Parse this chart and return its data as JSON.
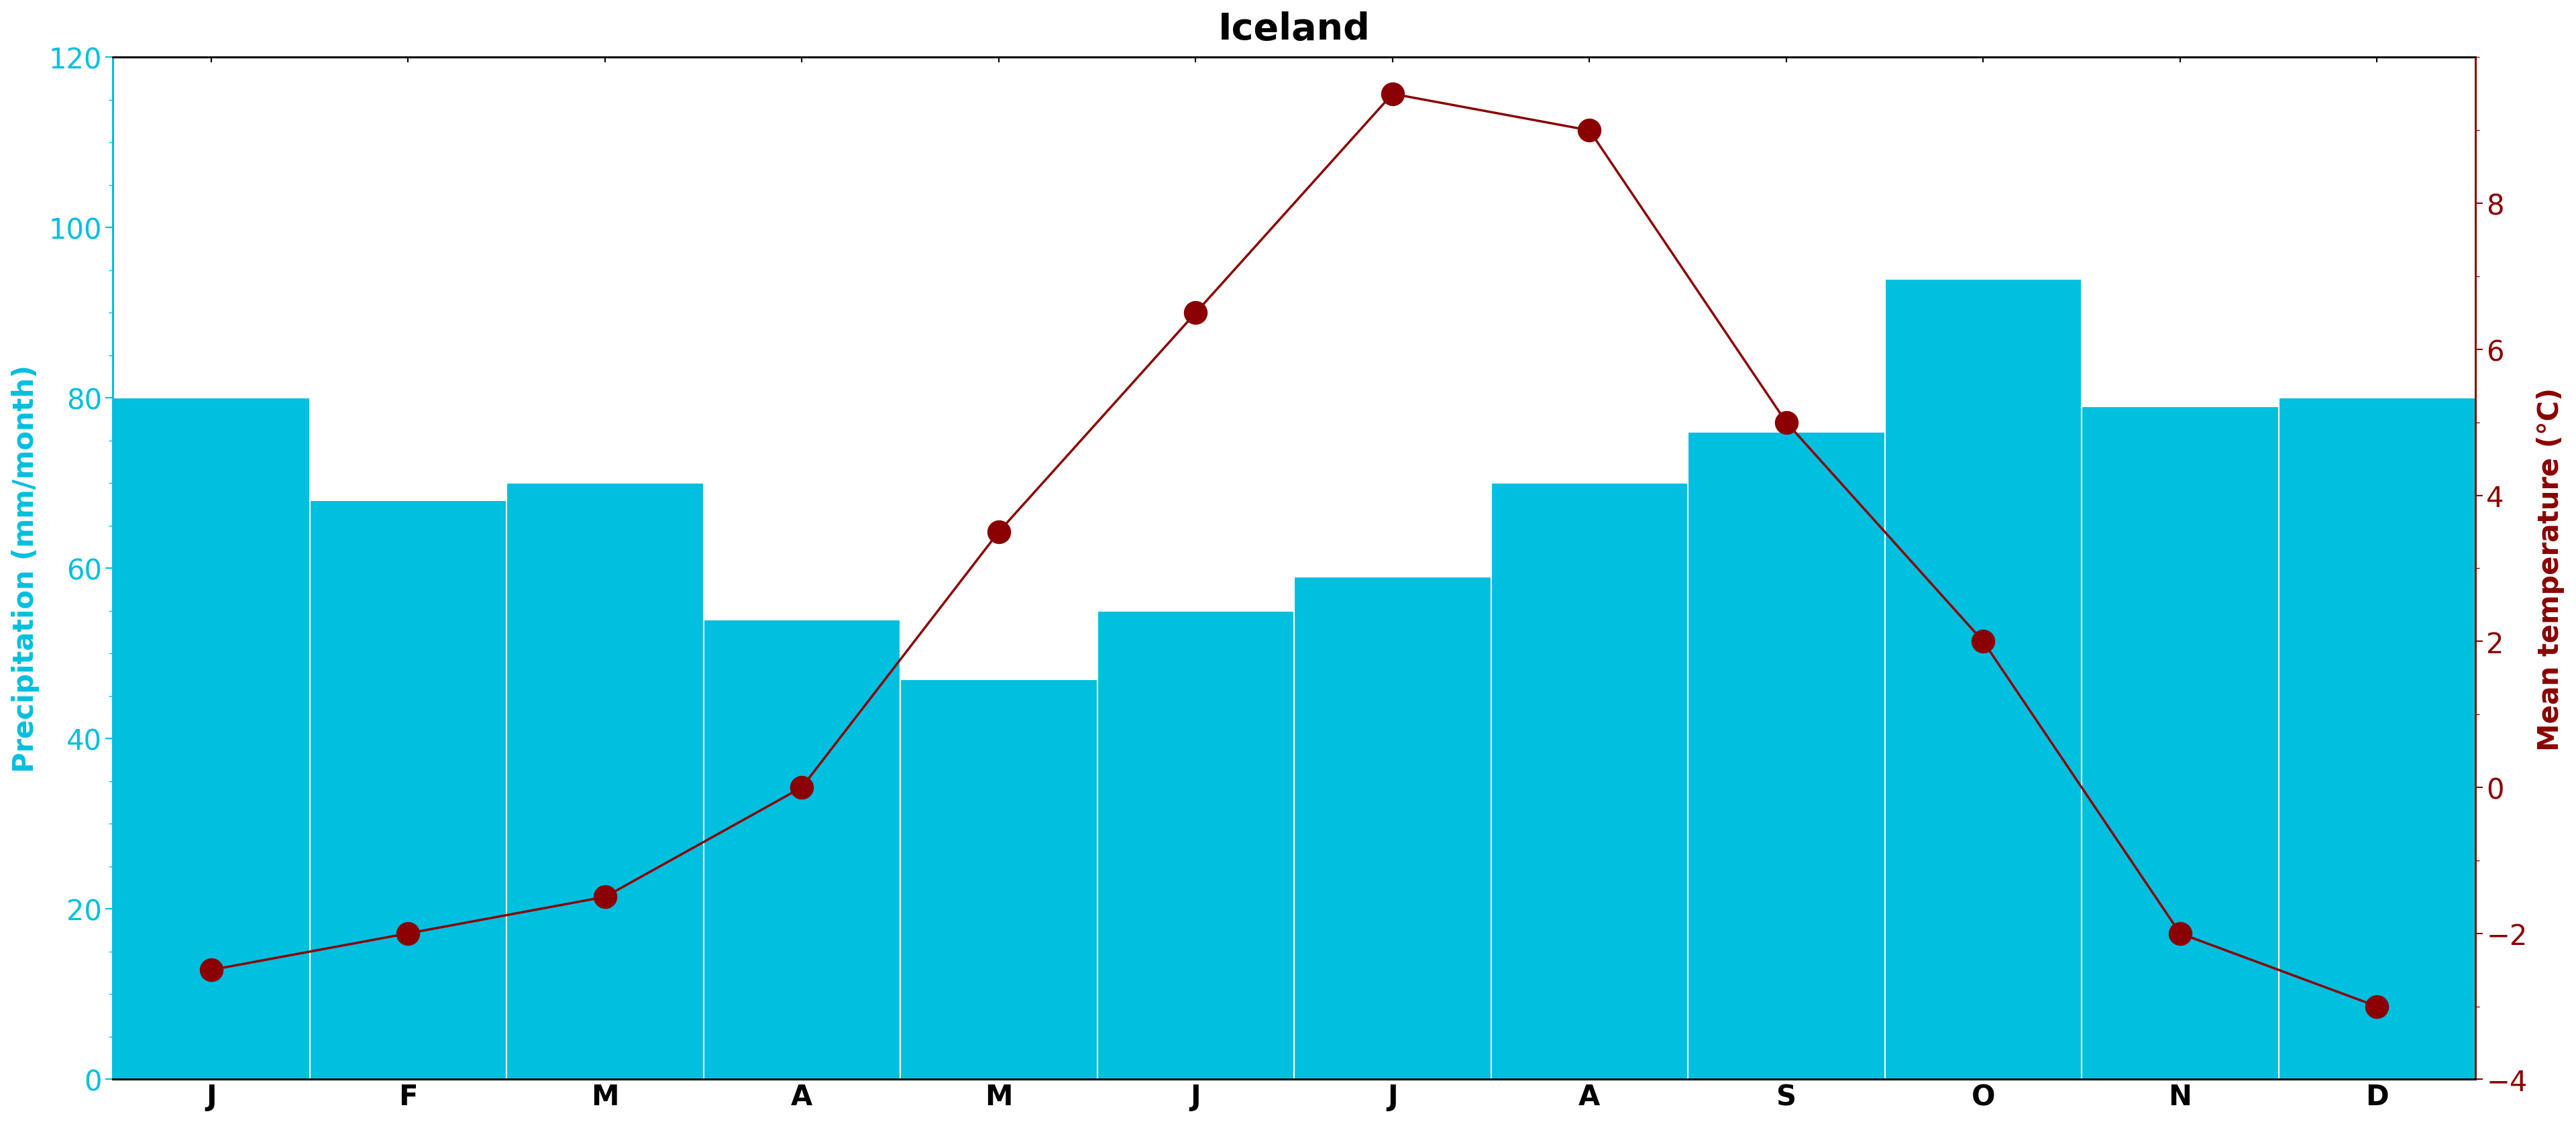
{
  "title": "Iceland",
  "months": [
    "J",
    "F",
    "M",
    "A",
    "M",
    "J",
    "J",
    "A",
    "S",
    "O",
    "N",
    "D"
  ],
  "precipitation": [
    80,
    68,
    70,
    54,
    47,
    55,
    59,
    70,
    76,
    94,
    79,
    80
  ],
  "temperature": [
    -2.5,
    -2.0,
    -1.5,
    0.0,
    3.5,
    6.5,
    9.5,
    9.0,
    5.0,
    2.0,
    -2.0,
    -3.0
  ],
  "bar_color": "#00BFDF",
  "line_color": "#8B0000",
  "marker_color": "#8B0000",
  "left_axis_color": "#00BFDF",
  "right_axis_color": "#8B0000",
  "ylim_precip": [
    0,
    120
  ],
  "ylim_temp": [
    -4,
    10
  ],
  "yticks_precip": [
    0,
    20,
    40,
    60,
    80,
    100,
    120
  ],
  "yticks_temp": [
    -4,
    -2,
    0,
    2,
    4,
    6,
    8
  ],
  "ylabel_left": "Precipitation (mm/month)",
  "ylabel_right": "Mean temperature (°C)",
  "title_fontsize": 40,
  "label_fontsize": 30,
  "tick_fontsize": 30,
  "background_color": "#ffffff",
  "bar_width": 1.0,
  "marker_size": 600,
  "line_width": 2.5,
  "spine_linewidth": 2.0
}
